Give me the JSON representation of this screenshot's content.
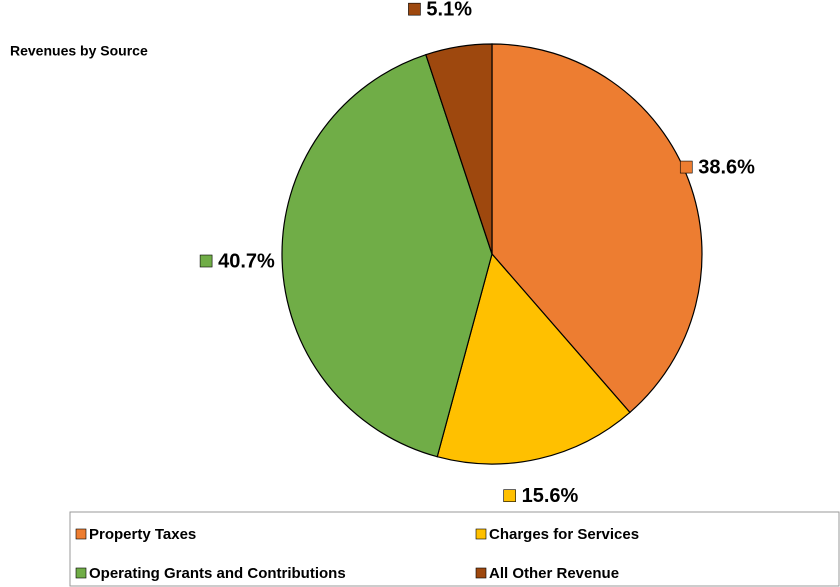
{
  "chart_data": {
    "type": "pie",
    "title": "Revenues by Source",
    "categories": [
      "Property Taxes",
      "Charges for Services",
      "Operating Grants and Contributions",
      "All Other Revenue"
    ],
    "values": [
      38.6,
      15.6,
      40.7,
      5.1
    ],
    "value_labels": [
      "38.6%",
      "15.6%",
      "40.7%",
      "5.1%"
    ],
    "colors": [
      "#ed7d31",
      "#ffc000",
      "#70ad47",
      "#9e480e"
    ]
  }
}
